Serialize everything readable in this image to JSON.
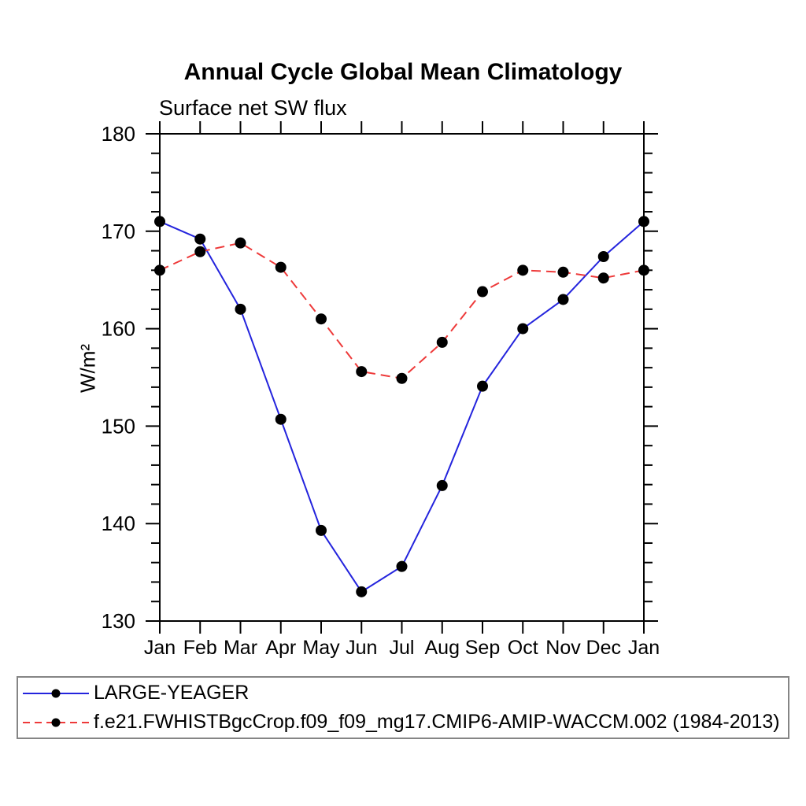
{
  "chart_data": {
    "type": "line",
    "title": "Annual Cycle Global Mean Climatology",
    "subtitle": "Surface net SW flux",
    "ylabel": "W/m²",
    "xlabel": "",
    "categories": [
      "Jan",
      "Feb",
      "Mar",
      "Apr",
      "May",
      "Jun",
      "Jul",
      "Aug",
      "Sep",
      "Oct",
      "Nov",
      "Dec",
      "Jan"
    ],
    "ylim": [
      130,
      180
    ],
    "y_major_step": 10,
    "y_minor_step": 2,
    "grid": false,
    "legend_position": "bottom-box",
    "marker": {
      "shape": "circle",
      "color": "#000000"
    },
    "axis_color": "#000000",
    "legend_border_color": "#858585",
    "series": [
      {
        "name": "LARGE-YEAGER",
        "style": "solid",
        "color": "#2424dd",
        "values": [
          171.0,
          169.2,
          162.0,
          150.7,
          139.3,
          133.0,
          135.6,
          143.9,
          154.1,
          160.0,
          163.0,
          167.4,
          171.0
        ]
      },
      {
        "name": "f.e21.FWHISTBgcCrop.f09_f09_mg17.CMIP6-AMIP-WACCM.002 (1984-2013)",
        "style": "dashed",
        "color": "#ee3a3a",
        "values": [
          166.0,
          167.9,
          168.8,
          166.3,
          161.0,
          155.6,
          154.9,
          158.6,
          163.8,
          166.0,
          165.8,
          165.2,
          166.0
        ]
      }
    ]
  }
}
